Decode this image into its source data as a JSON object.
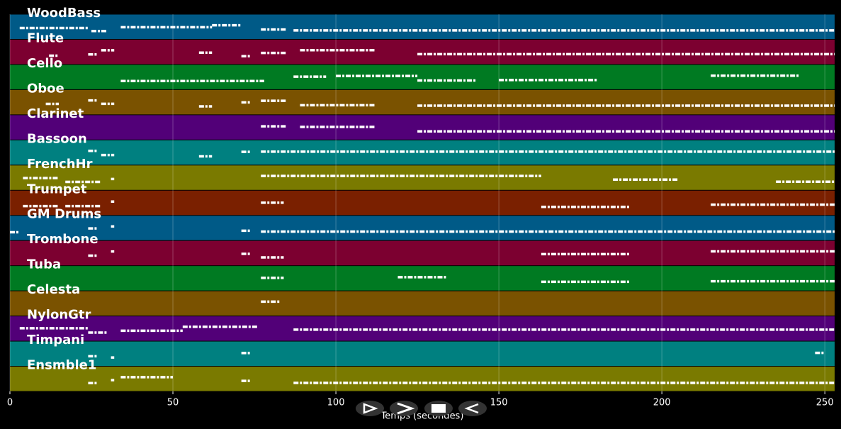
{
  "chart_data": {
    "type": "pianoroll",
    "x_label": "Temps (secondes)",
    "xlim": [
      0,
      253
    ],
    "xticks": [
      0,
      50,
      100,
      150,
      200,
      250
    ],
    "grid": true,
    "tracks": [
      {
        "name": "WoodBass",
        "color": "#005a87",
        "segments": [
          [
            3,
            24
          ],
          [
            25,
            30
          ],
          [
            34,
            62
          ],
          [
            62,
            71
          ],
          [
            77,
            85
          ],
          [
            87,
            253
          ]
        ]
      },
      {
        "name": "Flute",
        "color": "#7c0030",
        "segments": [
          [
            12,
            15
          ],
          [
            24,
            27
          ],
          [
            28,
            32
          ],
          [
            58,
            62
          ],
          [
            71,
            74
          ],
          [
            77,
            85
          ],
          [
            89,
            112
          ],
          [
            125,
            253
          ]
        ]
      },
      {
        "name": "Cello",
        "color": "#007a22",
        "segments": [
          [
            34,
            78
          ],
          [
            87,
            97
          ],
          [
            100,
            125
          ],
          [
            125,
            143
          ],
          [
            150,
            180
          ],
          [
            215,
            242
          ]
        ]
      },
      {
        "name": "Oboe",
        "color": "#7a5200",
        "segments": [
          [
            11,
            15
          ],
          [
            24,
            27
          ],
          [
            28,
            32
          ],
          [
            58,
            62
          ],
          [
            71,
            74
          ],
          [
            77,
            85
          ],
          [
            89,
            112
          ],
          [
            125,
            253
          ]
        ]
      },
      {
        "name": "Clarinet",
        "color": "#520078",
        "segments": [
          [
            77,
            85
          ],
          [
            89,
            112
          ],
          [
            125,
            253
          ]
        ]
      },
      {
        "name": "Bassoon",
        "color": "#008080",
        "segments": [
          [
            24,
            27
          ],
          [
            28,
            32
          ],
          [
            58,
            62
          ],
          [
            71,
            74
          ],
          [
            77,
            253
          ]
        ]
      },
      {
        "name": "FrenchHr",
        "color": "#7a7a00",
        "segments": [
          [
            4,
            15
          ],
          [
            17,
            28
          ],
          [
            31,
            32
          ],
          [
            77,
            163
          ],
          [
            185,
            205
          ],
          [
            235,
            253
          ]
        ]
      },
      {
        "name": "Trumpet",
        "color": "#7a2000",
        "segments": [
          [
            4,
            15
          ],
          [
            17,
            28
          ],
          [
            31,
            32
          ],
          [
            77,
            84
          ],
          [
            163,
            190
          ],
          [
            215,
            253
          ]
        ]
      },
      {
        "name": "GM Drums",
        "color": "#005a87",
        "segments": [
          [
            0,
            3
          ],
          [
            24,
            27
          ],
          [
            31,
            32
          ],
          [
            71,
            74
          ],
          [
            77,
            253
          ]
        ]
      },
      {
        "name": "Trombone",
        "color": "#7c0030",
        "segments": [
          [
            24,
            27
          ],
          [
            31,
            32
          ],
          [
            71,
            74
          ],
          [
            77,
            84
          ],
          [
            163,
            190
          ],
          [
            215,
            253
          ]
        ]
      },
      {
        "name": "Tuba",
        "color": "#007a22",
        "segments": [
          [
            77,
            84
          ],
          [
            119,
            134
          ],
          [
            163,
            190
          ],
          [
            215,
            253
          ]
        ]
      },
      {
        "name": "Celesta",
        "color": "#7a5200",
        "segments": [
          [
            77,
            83
          ]
        ]
      },
      {
        "name": "NylonGtr",
        "color": "#520078",
        "segments": [
          [
            3,
            24
          ],
          [
            24,
            30
          ],
          [
            34,
            53
          ],
          [
            53,
            76
          ],
          [
            87,
            253
          ]
        ]
      },
      {
        "name": "Timpani",
        "color": "#008080",
        "segments": [
          [
            24,
            27
          ],
          [
            31,
            32
          ],
          [
            71,
            74
          ],
          [
            247,
            250
          ]
        ]
      },
      {
        "name": "Ensmble1",
        "color": "#7a7a00",
        "segments": [
          [
            24,
            27
          ],
          [
            31,
            32
          ],
          [
            34,
            50
          ],
          [
            71,
            74
          ],
          [
            87,
            253
          ]
        ]
      }
    ]
  }
}
